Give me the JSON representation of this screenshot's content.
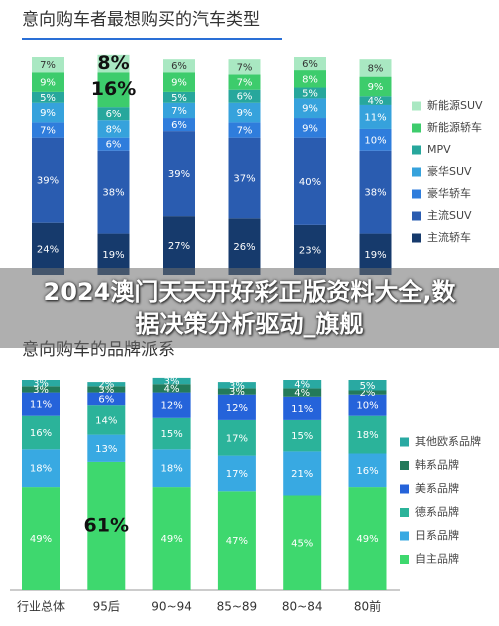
{
  "chart_data": [
    {
      "type": "bar",
      "stacked": true,
      "title": "意向购车者最想购买的汽车类型",
      "ylim": [
        0,
        100
      ],
      "series": [
        {
          "name": "主流轿车",
          "color": "#163a6c",
          "values": [
            24,
            19,
            27,
            26,
            23,
            19
          ],
          "value_labels": [
            "24%",
            "19%",
            "27%",
            "26%",
            "23%",
            "19%"
          ]
        },
        {
          "name": "主流SUV",
          "color": "#2a5cb0",
          "values": [
            39,
            38,
            39,
            37,
            40,
            38
          ],
          "value_labels": [
            "39%",
            "38%",
            "39%",
            "37%",
            "40%",
            "38%"
          ]
        },
        {
          "name": "豪华轿车",
          "color": "#2f7ddc",
          "values": [
            7,
            6,
            6,
            7,
            9,
            10
          ],
          "value_labels": [
            "7%",
            "6%",
            "6%",
            "7%",
            "9%",
            "10%"
          ]
        },
        {
          "name": "豪华SUV",
          "color": "#36a2dc",
          "values": [
            9,
            8,
            7,
            9,
            9,
            11
          ],
          "value_labels": [
            "9%",
            "8%",
            "7%",
            "9%",
            "9%",
            "11%"
          ]
        },
        {
          "name": "MPV",
          "color": "#27a79c",
          "values": [
            5,
            6,
            5,
            6,
            5,
            4
          ],
          "value_labels": [
            "5%",
            "6%",
            "5%",
            "6%",
            "5%",
            "4%"
          ]
        },
        {
          "name": "新能源轿车",
          "color": "#3dcc6c",
          "values": [
            9,
            16,
            9,
            7,
            8,
            9
          ],
          "value_labels": [
            "9%",
            "16%",
            "9%",
            "7%",
            "8%",
            "9%"
          ]
        },
        {
          "name": "新能源SUV",
          "color": "#a9e8c2",
          "values": [
            7,
            8,
            6,
            7,
            6,
            8
          ],
          "value_labels": [
            "7%",
            "8%",
            "6%",
            "7%",
            "6%",
            "8%"
          ]
        }
      ]
    },
    {
      "type": "bar",
      "stacked": true,
      "title": "意向购车的品牌派系",
      "ylim": [
        0,
        100
      ],
      "categories": [
        "行业总体",
        "95后",
        "90~94",
        "85~89",
        "80~84",
        "80前"
      ],
      "series": [
        {
          "name": "自主品牌",
          "color": "#3ed86e",
          "values": [
            49,
            61,
            49,
            47,
            45,
            49
          ],
          "value_labels": [
            "49%",
            "61%",
            "49%",
            "47%",
            "45%",
            "49%"
          ]
        },
        {
          "name": "日系品牌",
          "color": "#38a9e2",
          "values": [
            18,
            13,
            18,
            17,
            21,
            16
          ],
          "value_labels": [
            "18%",
            "13%",
            "18%",
            "17%",
            "21%",
            "16%"
          ]
        },
        {
          "name": "德系品牌",
          "color": "#2bb39a",
          "values": [
            16,
            14,
            15,
            17,
            15,
            18
          ],
          "value_labels": [
            "16%",
            "14%",
            "15%",
            "17%",
            "15%",
            "18%"
          ]
        },
        {
          "name": "美系品牌",
          "color": "#2563da",
          "values": [
            11,
            6,
            12,
            12,
            11,
            10
          ],
          "value_labels": [
            "11%",
            "6%",
            "12%",
            "12%",
            "11%",
            "10%"
          ]
        },
        {
          "name": "韩系品牌",
          "color": "#237a5a",
          "values": [
            3,
            3,
            4,
            3,
            4,
            2
          ],
          "value_labels": [
            "3%",
            "3%",
            "4%",
            "3%",
            "4%",
            "2%"
          ]
        },
        {
          "name": "其他欧系品牌",
          "color": "#29a9a2",
          "values": [
            3,
            2,
            3,
            3,
            4,
            5
          ],
          "value_labels": [
            "3%",
            "2%",
            "3%",
            "3%",
            "4%",
            "5%"
          ]
        }
      ]
    }
  ],
  "banner": "2024澳门天天开好彩正版资料大全,数据决策分析驱动_旗舰"
}
